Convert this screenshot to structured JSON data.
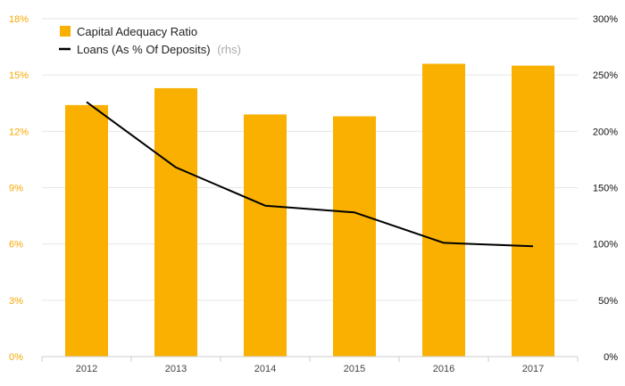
{
  "chart_data": {
    "type": "bar",
    "categories": [
      "2012",
      "2013",
      "2014",
      "2015",
      "2016",
      "2017"
    ],
    "series": [
      {
        "name": "Capital Adequacy Ratio",
        "type": "bar",
        "axis": "left",
        "color": "#f9b000",
        "values": [
          13.4,
          14.3,
          12.9,
          12.8,
          15.6,
          15.5
        ]
      },
      {
        "name": "Loans (As % Of Deposits)",
        "name_suffix": "(rhs)",
        "type": "line",
        "axis": "right",
        "color": "#000000",
        "values": [
          226,
          168,
          134,
          128,
          101,
          98
        ]
      }
    ],
    "y_left": {
      "ylim": [
        0,
        18
      ],
      "ticks": [
        0,
        3,
        6,
        9,
        12,
        15,
        18
      ],
      "tick_labels": [
        "0%",
        "3%",
        "6%",
        "9%",
        "12%",
        "15%",
        "18%"
      ],
      "color": "#f5a800"
    },
    "y_right": {
      "ylim": [
        0,
        300
      ],
      "ticks": [
        0,
        50,
        100,
        150,
        200,
        250,
        300
      ],
      "tick_labels": [
        "0%",
        "50%",
        "100%",
        "150%",
        "200%",
        "250%",
        "300%"
      ],
      "color": "#111111"
    },
    "grid": true,
    "legend_position": "top-left"
  }
}
